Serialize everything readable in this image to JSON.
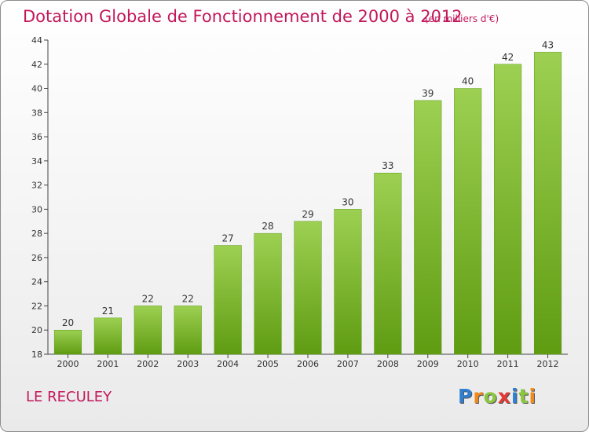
{
  "chart_data": {
    "type": "bar",
    "title": "Dotation Globale de Fonctionnement de 2000 à 2012",
    "subtitle": "(en milliers d'€)",
    "categories": [
      "2000",
      "2001",
      "2002",
      "2003",
      "2004",
      "2005",
      "2006",
      "2007",
      "2008",
      "2009",
      "2010",
      "2011",
      "2012"
    ],
    "values": [
      20,
      21,
      22,
      22,
      27,
      28,
      29,
      30,
      33,
      39,
      40,
      42,
      43
    ],
    "ylim": [
      18,
      44
    ],
    "yticks": [
      18,
      20,
      22,
      24,
      26,
      28,
      30,
      32,
      34,
      36,
      38,
      40,
      42,
      44
    ],
    "xlabel": "",
    "ylabel": "",
    "grid": false,
    "bar_color_top": "#9dd052",
    "bar_color_bottom": "#5f9c12"
  },
  "footer": {
    "commune": "LE RECULEY",
    "logo_letters": [
      {
        "ch": "P",
        "color": "#2f7fd0"
      },
      {
        "ch": "r",
        "color": "#f08a1c"
      },
      {
        "ch": "o",
        "color": "#8cc63f"
      },
      {
        "ch": "x",
        "color": "#e53935"
      },
      {
        "ch": "i",
        "color": "#2f7fd0"
      },
      {
        "ch": "t",
        "color": "#8cc63f"
      },
      {
        "ch": "i",
        "color": "#f08a1c"
      }
    ]
  }
}
